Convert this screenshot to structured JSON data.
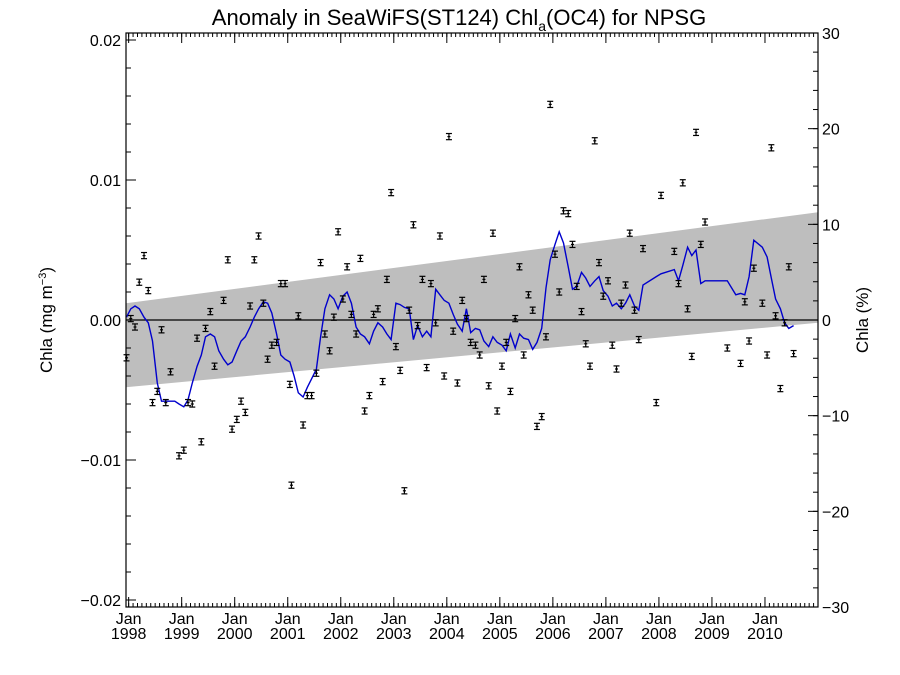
{
  "chart_data": {
    "type": "scatter",
    "title_parts": [
      "Anomaly in SeaWiFS(ST124) Chl",
      "a",
      "(OC4) for NPSG"
    ],
    "ylabel_left_parts": [
      "Chla (mg m",
      "−3",
      ")"
    ],
    "ylabel_right": "Chla (%)",
    "xlim": [
      1997.95,
      2011.0
    ],
    "ylim_left": [
      -0.0205,
      0.0205
    ],
    "ylim_right": [
      -30,
      30
    ],
    "y_ticks_left": [
      {
        "value": 0.02,
        "label": "0.02"
      },
      {
        "value": 0.01,
        "label": "0.01"
      },
      {
        "value": 0.0,
        "label": "0.00"
      },
      {
        "value": -0.01,
        "label": "−0.01"
      },
      {
        "value": -0.02,
        "label": "−0.02"
      }
    ],
    "y_ticks_right": [
      {
        "value": 30,
        "label": "30"
      },
      {
        "value": 20,
        "label": "20"
      },
      {
        "value": 10,
        "label": "10"
      },
      {
        "value": 0,
        "label": "0"
      },
      {
        "value": -10,
        "label": "−10"
      },
      {
        "value": -20,
        "label": "−20"
      },
      {
        "value": -30,
        "label": "−30"
      }
    ],
    "x_ticks": [
      {
        "value": 1998,
        "month": "Jan",
        "year": "1998"
      },
      {
        "value": 1999,
        "month": "Jan",
        "year": "1999"
      },
      {
        "value": 2000,
        "month": "Jan",
        "year": "2000"
      },
      {
        "value": 2001,
        "month": "Jan",
        "year": "2001"
      },
      {
        "value": 2002,
        "month": "Jan",
        "year": "2002"
      },
      {
        "value": 2003,
        "month": "Jan",
        "year": "2003"
      },
      {
        "value": 2004,
        "month": "Jan",
        "year": "2004"
      },
      {
        "value": 2005,
        "month": "Jan",
        "year": "2005"
      },
      {
        "value": 2006,
        "month": "Jan",
        "year": "2006"
      },
      {
        "value": 2007,
        "month": "Jan",
        "year": "2007"
      },
      {
        "value": 2008,
        "month": "Jan",
        "year": "2008"
      },
      {
        "value": 2009,
        "month": "Jan",
        "year": "2009"
      },
      {
        "value": 2010,
        "month": "Jan",
        "year": "2010"
      }
    ],
    "zero_line": 0.0,
    "band": {
      "x": [
        1997.95,
        2011.0
      ],
      "upper": [
        0.0012,
        0.0077
      ],
      "lower": [
        -0.0048,
        -0.0002
      ],
      "color": "#bebebe"
    },
    "error_bar_half_height": 0.00022,
    "points_color": "#000000",
    "smoothed_color": "#0000cc",
    "points": [
      [
        1997.96,
        -0.0027
      ],
      [
        1998.04,
        0.0001
      ],
      [
        1998.12,
        -0.0005
      ],
      [
        1998.2,
        0.0027
      ],
      [
        1998.29,
        0.0046
      ],
      [
        1998.37,
        0.0021
      ],
      [
        1998.45,
        -0.0059
      ],
      [
        1998.54,
        -0.0051
      ],
      [
        1998.62,
        -0.0007
      ],
      [
        1998.7,
        -0.0059
      ],
      [
        1998.79,
        -0.0037
      ],
      [
        1998.95,
        -0.0097
      ],
      [
        1999.04,
        -0.0093
      ],
      [
        1999.12,
        -0.0059
      ],
      [
        1999.2,
        -0.006
      ],
      [
        1999.29,
        -0.0013
      ],
      [
        1999.37,
        -0.0087
      ],
      [
        1999.45,
        -0.0006
      ],
      [
        1999.54,
        0.0006
      ],
      [
        1999.62,
        -0.0033
      ],
      [
        1999.79,
        0.0014
      ],
      [
        1999.87,
        0.0043
      ],
      [
        1999.95,
        -0.0078
      ],
      [
        2000.04,
        -0.0071
      ],
      [
        2000.12,
        -0.0058
      ],
      [
        2000.2,
        -0.0066
      ],
      [
        2000.29,
        0.001
      ],
      [
        2000.37,
        0.0043
      ],
      [
        2000.45,
        0.006
      ],
      [
        2000.54,
        0.0012
      ],
      [
        2000.62,
        -0.0028
      ],
      [
        2000.7,
        -0.0018
      ],
      [
        2000.79,
        -0.0016
      ],
      [
        2000.87,
        0.0026
      ],
      [
        2000.95,
        0.0026
      ],
      [
        2001.04,
        -0.0046
      ],
      [
        2001.07,
        -0.0118
      ],
      [
        2001.2,
        0.0003
      ],
      [
        2001.29,
        -0.0075
      ],
      [
        2001.37,
        -0.0054
      ],
      [
        2001.45,
        -0.0054
      ],
      [
        2001.54,
        -0.0038
      ],
      [
        2001.62,
        0.0041
      ],
      [
        2001.7,
        -0.001
      ],
      [
        2001.79,
        -0.0022
      ],
      [
        2001.87,
        0.0002
      ],
      [
        2001.95,
        0.0063
      ],
      [
        2002.04,
        0.0015
      ],
      [
        2002.12,
        0.0038
      ],
      [
        2002.2,
        0.0004
      ],
      [
        2002.29,
        -0.001
      ],
      [
        2002.37,
        0.0044
      ],
      [
        2002.45,
        -0.0065
      ],
      [
        2002.54,
        -0.0054
      ],
      [
        2002.62,
        0.0004
      ],
      [
        2002.7,
        0.0008
      ],
      [
        2002.79,
        -0.0044
      ],
      [
        2002.87,
        0.0029
      ],
      [
        2002.95,
        0.0091
      ],
      [
        2003.04,
        -0.0019
      ],
      [
        2003.12,
        -0.0036
      ],
      [
        2003.2,
        -0.0122
      ],
      [
        2003.29,
        0.0007
      ],
      [
        2003.37,
        0.0068
      ],
      [
        2003.45,
        -0.0004
      ],
      [
        2003.54,
        0.0029
      ],
      [
        2003.62,
        -0.0034
      ],
      [
        2003.7,
        0.0026
      ],
      [
        2003.79,
        -0.0002
      ],
      [
        2003.87,
        0.006
      ],
      [
        2003.95,
        -0.004
      ],
      [
        2004.04,
        0.0131
      ],
      [
        2004.12,
        -0.0008
      ],
      [
        2004.2,
        -0.0045
      ],
      [
        2004.29,
        0.0014
      ],
      [
        2004.37,
        0.0001
      ],
      [
        2004.45,
        -0.0016
      ],
      [
        2004.54,
        -0.0018
      ],
      [
        2004.62,
        -0.0025
      ],
      [
        2004.7,
        0.0029
      ],
      [
        2004.79,
        -0.0047
      ],
      [
        2004.87,
        0.0062
      ],
      [
        2004.95,
        -0.0065
      ],
      [
        2005.04,
        -0.0033
      ],
      [
        2005.12,
        -0.0016
      ],
      [
        2005.2,
        -0.0051
      ],
      [
        2005.29,
        0.0001
      ],
      [
        2005.37,
        0.0038
      ],
      [
        2005.45,
        -0.0025
      ],
      [
        2005.54,
        0.0018
      ],
      [
        2005.62,
        0.0007
      ],
      [
        2005.7,
        -0.0076
      ],
      [
        2005.79,
        -0.0069
      ],
      [
        2005.87,
        -0.0012
      ],
      [
        2005.95,
        0.0154
      ],
      [
        2006.04,
        0.0047
      ],
      [
        2006.12,
        0.002
      ],
      [
        2006.2,
        0.0078
      ],
      [
        2006.29,
        0.0076
      ],
      [
        2006.37,
        0.0054
      ],
      [
        2006.45,
        0.0024
      ],
      [
        2006.54,
        0.0006
      ],
      [
        2006.62,
        -0.0017
      ],
      [
        2006.7,
        -0.0033
      ],
      [
        2006.79,
        0.0128
      ],
      [
        2006.87,
        0.0041
      ],
      [
        2006.95,
        0.0017
      ],
      [
        2007.04,
        0.0028
      ],
      [
        2007.12,
        -0.0018
      ],
      [
        2007.2,
        -0.0035
      ],
      [
        2007.29,
        0.0012
      ],
      [
        2007.37,
        0.0025
      ],
      [
        2007.45,
        0.0062
      ],
      [
        2007.54,
        0.0007
      ],
      [
        2007.62,
        -0.0014
      ],
      [
        2007.7,
        0.0051
      ],
      [
        2007.95,
        -0.0059
      ],
      [
        2008.04,
        0.0089
      ],
      [
        2008.29,
        0.0049
      ],
      [
        2008.37,
        0.0026
      ],
      [
        2008.45,
        0.0098
      ],
      [
        2008.54,
        0.0008
      ],
      [
        2008.62,
        -0.0026
      ],
      [
        2008.7,
        0.0134
      ],
      [
        2008.79,
        0.0054
      ],
      [
        2008.87,
        0.007
      ],
      [
        2009.29,
        -0.002
      ],
      [
        2009.54,
        -0.0031
      ],
      [
        2009.62,
        0.0013
      ],
      [
        2009.7,
        -0.0015
      ],
      [
        2009.79,
        0.0037
      ],
      [
        2009.95,
        0.0012
      ],
      [
        2010.04,
        -0.0025
      ],
      [
        2010.12,
        0.0123
      ],
      [
        2010.2,
        0.0003
      ],
      [
        2010.29,
        -0.0049
      ],
      [
        2010.37,
        -0.0002
      ],
      [
        2010.45,
        0.0038
      ],
      [
        2010.54,
        -0.0024
      ]
    ],
    "smoothed": [
      [
        1997.96,
        0.0002
      ],
      [
        1998.04,
        0.0008
      ],
      [
        1998.12,
        0.001
      ],
      [
        1998.2,
        0.0008
      ],
      [
        1998.29,
        0.0002
      ],
      [
        1998.37,
        -0.0002
      ],
      [
        1998.45,
        -0.0015
      ],
      [
        1998.54,
        -0.0045
      ],
      [
        1998.62,
        -0.0058
      ],
      [
        1998.7,
        -0.0058
      ],
      [
        1998.79,
        -0.0058
      ],
      [
        1998.87,
        -0.0058
      ],
      [
        1998.95,
        -0.006
      ],
      [
        1999.04,
        -0.0062
      ],
      [
        1999.12,
        -0.0057
      ],
      [
        1999.2,
        -0.0045
      ],
      [
        1999.29,
        -0.0033
      ],
      [
        1999.37,
        -0.0025
      ],
      [
        1999.45,
        -0.0012
      ],
      [
        1999.54,
        -0.001
      ],
      [
        1999.62,
        -0.0012
      ],
      [
        1999.7,
        -0.0022
      ],
      [
        1999.79,
        -0.0028
      ],
      [
        1999.87,
        -0.0032
      ],
      [
        1999.95,
        -0.003
      ],
      [
        2000.04,
        -0.0022
      ],
      [
        2000.12,
        -0.0015
      ],
      [
        2000.2,
        -0.0012
      ],
      [
        2000.29,
        -0.0005
      ],
      [
        2000.37,
        0.0002
      ],
      [
        2000.45,
        0.0008
      ],
      [
        2000.54,
        0.0013
      ],
      [
        2000.62,
        0.0012
      ],
      [
        2000.7,
        0.0005
      ],
      [
        2000.79,
        -0.001
      ],
      [
        2000.87,
        -0.0025
      ],
      [
        2000.95,
        -0.0028
      ],
      [
        2001.04,
        -0.003
      ],
      [
        2001.12,
        -0.004
      ],
      [
        2001.2,
        -0.0052
      ],
      [
        2001.29,
        -0.0055
      ],
      [
        2001.37,
        -0.0048
      ],
      [
        2001.45,
        -0.0042
      ],
      [
        2001.54,
        -0.0035
      ],
      [
        2001.62,
        -0.0012
      ],
      [
        2001.7,
        0.0008
      ],
      [
        2001.79,
        0.0018
      ],
      [
        2001.87,
        0.0015
      ],
      [
        2001.95,
        0.0008
      ],
      [
        2002.04,
        0.0017
      ],
      [
        2002.12,
        0.002
      ],
      [
        2002.2,
        0.0012
      ],
      [
        2002.29,
        -0.0005
      ],
      [
        2002.37,
        -0.001
      ],
      [
        2002.45,
        -0.0012
      ],
      [
        2002.54,
        -0.0017
      ],
      [
        2002.62,
        -0.0008
      ],
      [
        2002.7,
        -0.0002
      ],
      [
        2002.79,
        -0.0005
      ],
      [
        2002.87,
        -0.001
      ],
      [
        2002.95,
        -0.0014
      ],
      [
        2003.04,
        0.0012
      ],
      [
        2003.12,
        0.0011
      ],
      [
        2003.2,
        0.0009
      ],
      [
        2003.29,
        0.0008
      ],
      [
        2003.37,
        -0.0014
      ],
      [
        2003.45,
        -0.0004
      ],
      [
        2003.54,
        -0.0012
      ],
      [
        2003.62,
        -0.0008
      ],
      [
        2003.7,
        -0.0012
      ],
      [
        2003.79,
        0.0022
      ],
      [
        2003.87,
        0.0018
      ],
      [
        2003.95,
        0.0014
      ],
      [
        2004.04,
        0.0012
      ],
      [
        2004.12,
        0.0004
      ],
      [
        2004.2,
        -0.0003
      ],
      [
        2004.29,
        -0.0008
      ],
      [
        2004.37,
        0.0008
      ],
      [
        2004.45,
        -0.0009
      ],
      [
        2004.54,
        -0.0006
      ],
      [
        2004.62,
        -0.0007
      ],
      [
        2004.7,
        -0.0015
      ],
      [
        2004.79,
        -0.0019
      ],
      [
        2004.87,
        -0.0012
      ],
      [
        2004.95,
        -0.0016
      ],
      [
        2005.04,
        -0.0018
      ],
      [
        2005.12,
        -0.0022
      ],
      [
        2005.2,
        -0.001
      ],
      [
        2005.29,
        -0.002
      ],
      [
        2005.37,
        -0.001
      ],
      [
        2005.45,
        -0.0013
      ],
      [
        2005.54,
        -0.0014
      ],
      [
        2005.62,
        -0.0021
      ],
      [
        2005.7,
        -0.0016
      ],
      [
        2005.79,
        -0.0006
      ],
      [
        2005.87,
        0.0023
      ],
      [
        2005.95,
        0.0043
      ],
      [
        2006.04,
        0.0054
      ],
      [
        2006.12,
        0.0063
      ],
      [
        2006.2,
        0.0055
      ],
      [
        2006.29,
        0.0038
      ],
      [
        2006.37,
        0.0022
      ],
      [
        2006.45,
        0.0024
      ],
      [
        2006.54,
        0.0034
      ],
      [
        2006.62,
        0.003
      ],
      [
        2006.7,
        0.0024
      ],
      [
        2006.79,
        0.0028
      ],
      [
        2006.87,
        0.0031
      ],
      [
        2006.95,
        0.0021
      ],
      [
        2007.04,
        0.0017
      ],
      [
        2007.12,
        0.001
      ],
      [
        2007.2,
        0.0012
      ],
      [
        2007.29,
        0.0008
      ],
      [
        2007.37,
        0.0012
      ],
      [
        2007.45,
        0.0018
      ],
      [
        2007.54,
        0.001
      ],
      [
        2007.62,
        0.0007
      ],
      [
        2007.7,
        0.0025
      ],
      [
        2007.95,
        0.0031
      ],
      [
        2008.04,
        0.0033
      ],
      [
        2008.29,
        0.0036
      ],
      [
        2008.37,
        0.0028
      ],
      [
        2008.45,
        0.0039
      ],
      [
        2008.54,
        0.0052
      ],
      [
        2008.62,
        0.0046
      ],
      [
        2008.7,
        0.005
      ],
      [
        2008.79,
        0.0026
      ],
      [
        2008.87,
        0.0028
      ],
      [
        2009.29,
        0.0028
      ],
      [
        2009.45,
        0.0018
      ],
      [
        2009.54,
        0.0019
      ],
      [
        2009.62,
        0.0018
      ],
      [
        2009.7,
        0.0031
      ],
      [
        2009.79,
        0.0057
      ],
      [
        2009.95,
        0.0052
      ],
      [
        2010.04,
        0.0045
      ],
      [
        2010.12,
        0.003
      ],
      [
        2010.2,
        0.0015
      ],
      [
        2010.29,
        0.0008
      ],
      [
        2010.37,
        -0.0002
      ],
      [
        2010.45,
        -0.0006
      ],
      [
        2010.54,
        -0.0004
      ]
    ]
  }
}
